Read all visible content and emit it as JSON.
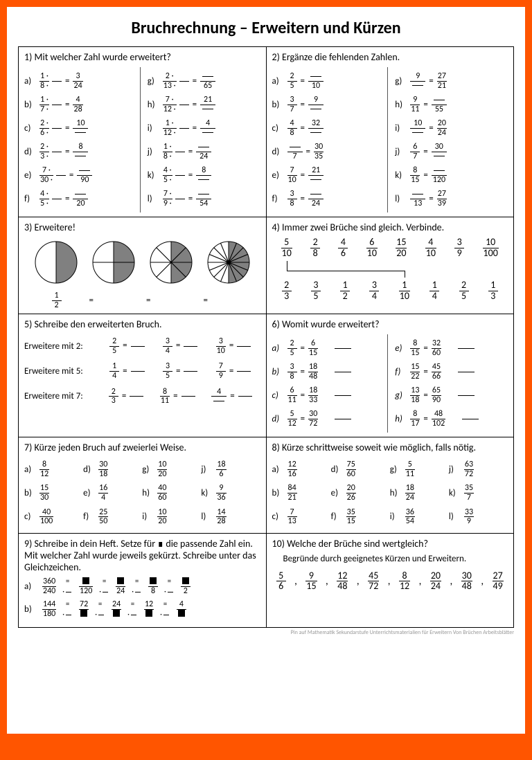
{
  "colors": {
    "accent": "#ff5500",
    "bg": "#ffffff",
    "stroke": "#000000",
    "pie_fill": "#808080"
  },
  "title": "Bruchrechnung – Erweitern und Kürzen",
  "footer": "Pin auf Mathematik Sekundarstufe Unterrichtsmaterialien für Erweitern Von Brüchen Arbeitsblätter",
  "ex1": {
    "title": "1) Mit welcher Zahl wurde erweitert?",
    "left": [
      {
        "l": "a)",
        "f1": {
          "n": "1 ·",
          "d": "8 ·"
        },
        "f2": {
          "n": "3",
          "d": "24"
        }
      },
      {
        "l": "b)",
        "f1": {
          "n": "1 ·",
          "d": "7 ·"
        },
        "f2": {
          "n": "4",
          "d": "28"
        }
      },
      {
        "l": "c)",
        "f1": {
          "n": "2 ·",
          "d": "6 ·"
        },
        "f2": {
          "n": "10",
          "d": ""
        }
      },
      {
        "l": "d)",
        "f1": {
          "n": "2 ·",
          "d": "3 ·"
        },
        "f2": {
          "n": "8",
          "d": ""
        }
      },
      {
        "l": "e)",
        "f1": {
          "n": "7 ·",
          "d": "30 ·"
        },
        "f2": {
          "n": "",
          "d": "90"
        }
      },
      {
        "l": "f)",
        "f1": {
          "n": "4 ·",
          "d": "5 ·"
        },
        "f2": {
          "n": "",
          "d": "20"
        }
      }
    ],
    "right": [
      {
        "l": "g)",
        "f1": {
          "n": "2 ·",
          "d": "13 ·"
        },
        "f2": {
          "n": "",
          "d": "65"
        }
      },
      {
        "l": "h)",
        "f1": {
          "n": "7 ·",
          "d": "12 ·"
        },
        "f2": {
          "n": "21",
          "d": ""
        }
      },
      {
        "l": "i)",
        "f1": {
          "n": "1 ·",
          "d": "12 ·"
        },
        "f2": {
          "n": "4",
          "d": ""
        }
      },
      {
        "l": "j)",
        "f1": {
          "n": "1 ·",
          "d": "8 ·"
        },
        "f2": {
          "n": "",
          "d": "24"
        }
      },
      {
        "l": "k)",
        "f1": {
          "n": "4 ·",
          "d": "5 ·"
        },
        "f2": {
          "n": "8",
          "d": ""
        }
      },
      {
        "l": "l)",
        "f1": {
          "n": "7 ·",
          "d": "9 ·"
        },
        "f2": {
          "n": "",
          "d": "54"
        }
      }
    ]
  },
  "ex2": {
    "title": "2) Ergänze die fehlenden Zahlen.",
    "left": [
      {
        "l": "a)",
        "f1": {
          "n": "2",
          "d": "5"
        },
        "f2": {
          "n": "",
          "d": "10"
        }
      },
      {
        "l": "b)",
        "f1": {
          "n": "3",
          "d": "7"
        },
        "f2": {
          "n": "9",
          "d": ""
        }
      },
      {
        "l": "c)",
        "f1": {
          "n": "4",
          "d": "8"
        },
        "f2": {
          "n": "32",
          "d": ""
        }
      },
      {
        "l": "d)",
        "f1": {
          "n": "",
          "d": "7"
        },
        "f2": {
          "n": "30",
          "d": "35"
        }
      },
      {
        "l": "e)",
        "f1": {
          "n": "7",
          "d": "10"
        },
        "f2": {
          "n": "21",
          "d": ""
        }
      },
      {
        "l": "f)",
        "f1": {
          "n": "3",
          "d": "8"
        },
        "f2": {
          "n": "",
          "d": "24"
        }
      }
    ],
    "right": [
      {
        "l": "g)",
        "f1": {
          "n": "9",
          "d": ""
        },
        "f2": {
          "n": "27",
          "d": "21"
        }
      },
      {
        "l": "h)",
        "f1": {
          "n": "9",
          "d": "11"
        },
        "f2": {
          "n": "",
          "d": "55"
        }
      },
      {
        "l": "i)",
        "f1": {
          "n": "10",
          "d": ""
        },
        "f2": {
          "n": "20",
          "d": "24"
        }
      },
      {
        "l": "j)",
        "f1": {
          "n": "6",
          "d": "7"
        },
        "f2": {
          "n": "30",
          "d": ""
        }
      },
      {
        "l": "k)",
        "f1": {
          "n": "8",
          "d": "15"
        },
        "f2": {
          "n": "",
          "d": "120"
        }
      },
      {
        "l": "l)",
        "f1": {
          "n": "",
          "d": "13"
        },
        "f2": {
          "n": "27",
          "d": "39"
        }
      }
    ]
  },
  "ex3": {
    "title": "3) Erweitere!",
    "pies": [
      {
        "sectors": 2,
        "dark": [
          0
        ]
      },
      {
        "sectors": 4,
        "dark": [
          0,
          1
        ]
      },
      {
        "sectors": 8,
        "dark": [
          0,
          1,
          2,
          3
        ]
      },
      {
        "sectors": 16,
        "dark": [
          0,
          1,
          2,
          3,
          4,
          5,
          6,
          7
        ]
      }
    ],
    "base": {
      "n": "1",
      "d": "2"
    }
  },
  "ex4": {
    "title": "4) Immer zwei Brüche sind gleich. Verbinde.",
    "top": [
      {
        "n": "5",
        "d": "10"
      },
      {
        "n": "2",
        "d": "8"
      },
      {
        "n": "4",
        "d": "6"
      },
      {
        "n": "6",
        "d": "10"
      },
      {
        "n": "15",
        "d": "20"
      },
      {
        "n": "4",
        "d": "10"
      },
      {
        "n": "3",
        "d": "9"
      },
      {
        "n": "10",
        "d": "100"
      }
    ],
    "bottom": [
      {
        "n": "2",
        "d": "3"
      },
      {
        "n": "3",
        "d": "5"
      },
      {
        "n": "1",
        "d": "2"
      },
      {
        "n": "3",
        "d": "4"
      },
      {
        "n": "1",
        "d": "10"
      },
      {
        "n": "1",
        "d": "4"
      },
      {
        "n": "2",
        "d": "5"
      },
      {
        "n": "1",
        "d": "3"
      }
    ]
  },
  "ex5": {
    "title": "5) Schreibe den erweiterten Bruch.",
    "rows": [
      {
        "txt": "Erweitere mit 2:",
        "items": [
          {
            "n": "2",
            "d": "5"
          },
          {
            "n": "3",
            "d": "4"
          },
          {
            "n": "3",
            "d": "10"
          }
        ]
      },
      {
        "txt": "Erweitere mit 5:",
        "items": [
          {
            "n": "1",
            "d": "4"
          },
          {
            "n": "3",
            "d": "5"
          },
          {
            "n": "7",
            "d": "9"
          }
        ]
      },
      {
        "txt": "Erweitere mit 7:",
        "items": [
          {
            "n": "2",
            "d": "3"
          },
          {
            "n": "8",
            "d": "11"
          },
          {
            "n": "4",
            "d": ""
          }
        ]
      }
    ]
  },
  "ex6": {
    "title": "6) Womit wurde erweitert?",
    "left": [
      {
        "l": "a)",
        "f1": {
          "n": "2",
          "d": "5"
        },
        "f2": {
          "n": "6",
          "d": "15"
        }
      },
      {
        "l": "b)",
        "f1": {
          "n": "3",
          "d": "8"
        },
        "f2": {
          "n": "18",
          "d": "48"
        }
      },
      {
        "l": "c)",
        "f1": {
          "n": "6",
          "d": "11"
        },
        "f2": {
          "n": "18",
          "d": "33"
        }
      },
      {
        "l": "d)",
        "f1": {
          "n": "5",
          "d": "12"
        },
        "f2": {
          "n": "30",
          "d": "72"
        }
      }
    ],
    "right": [
      {
        "l": "e)",
        "f1": {
          "n": "8",
          "d": "15"
        },
        "f2": {
          "n": "32",
          "d": "60"
        }
      },
      {
        "l": "f)",
        "f1": {
          "n": "15",
          "d": "22"
        },
        "f2": {
          "n": "45",
          "d": "66"
        }
      },
      {
        "l": "g)",
        "f1": {
          "n": "13",
          "d": "18"
        },
        "f2": {
          "n": "65",
          "d": "90"
        }
      },
      {
        "l": "h)",
        "f1": {
          "n": "8",
          "d": "17"
        },
        "f2": {
          "n": "48",
          "d": "102"
        }
      }
    ]
  },
  "ex7": {
    "title": "7) Kürze jeden Bruch auf zweierlei Weise.",
    "items": [
      {
        "l": "a)",
        "n": "8",
        "d": "12"
      },
      {
        "l": "d)",
        "n": "30",
        "d": "18"
      },
      {
        "l": "g)",
        "n": "10",
        "d": "20"
      },
      {
        "l": "j)",
        "n": "18",
        "d": "6"
      },
      {
        "l": "b)",
        "n": "15",
        "d": "30"
      },
      {
        "l": "e)",
        "n": "16",
        "d": "4"
      },
      {
        "l": "h)",
        "n": "40",
        "d": "60"
      },
      {
        "l": "k)",
        "n": "9",
        "d": "36"
      },
      {
        "l": "c)",
        "n": "40",
        "d": "100"
      },
      {
        "l": "f)",
        "n": "25",
        "d": "50"
      },
      {
        "l": "i)",
        "n": "10",
        "d": "20"
      },
      {
        "l": "l)",
        "n": "14",
        "d": "28"
      }
    ]
  },
  "ex8": {
    "title": "8) Kürze schrittweise soweit wie möglich, falls nötig.",
    "items": [
      {
        "l": "a)",
        "n": "12",
        "d": "16"
      },
      {
        "l": "d)",
        "n": "75",
        "d": "60"
      },
      {
        "l": "g)",
        "n": "5",
        "d": "11"
      },
      {
        "l": "j)",
        "n": "63",
        "d": "72"
      },
      {
        "l": "b)",
        "n": "84",
        "d": "21"
      },
      {
        "l": "e)",
        "n": "20",
        "d": "26"
      },
      {
        "l": "h)",
        "n": "18",
        "d": "24"
      },
      {
        "l": "k)",
        "n": "35",
        "d": "7"
      },
      {
        "l": "c)",
        "n": "7",
        "d": "13"
      },
      {
        "l": "f)",
        "n": "35",
        "d": "15"
      },
      {
        "l": "i)",
        "n": "36",
        "d": "54"
      },
      {
        "l": "l)",
        "n": "33",
        "d": "9"
      }
    ]
  },
  "ex9": {
    "title": "9) Schreibe in dein Heft. Setze für ∎ die passende Zahl ein. Mit welcher Zahl wurde jeweils gekürzt. Schreibe unter das Gleichzeichen.",
    "rows": [
      {
        "l": "a)",
        "f1": {
          "n": "360",
          "d": "240"
        },
        "steps": [
          {
            "d": "120"
          },
          {
            "d": "24"
          },
          {
            "d": "8"
          },
          {
            "d": "2"
          }
        ]
      },
      {
        "l": "b)",
        "f1": {
          "n": "144",
          "d": "180"
        },
        "f2": {
          "n": "72",
          "d": ""
        },
        "steps_full": [
          {
            "n": "24",
            "d": ""
          },
          {
            "n": "12",
            "d": ""
          },
          {
            "n": "4",
            "d": ""
          }
        ]
      }
    ]
  },
  "ex10": {
    "title": "10) Welche der Brüche sind wertgleich?",
    "subtitle": "Begründe durch geeignetes Kürzen und Erweitern.",
    "items": [
      {
        "n": "5",
        "d": "6"
      },
      {
        "n": "9",
        "d": "15"
      },
      {
        "n": "12",
        "d": "48"
      },
      {
        "n": "45",
        "d": "72"
      },
      {
        "n": "8",
        "d": "12"
      },
      {
        "n": "20",
        "d": "24"
      },
      {
        "n": "30",
        "d": "48"
      },
      {
        "n": "27",
        "d": "49"
      }
    ]
  }
}
